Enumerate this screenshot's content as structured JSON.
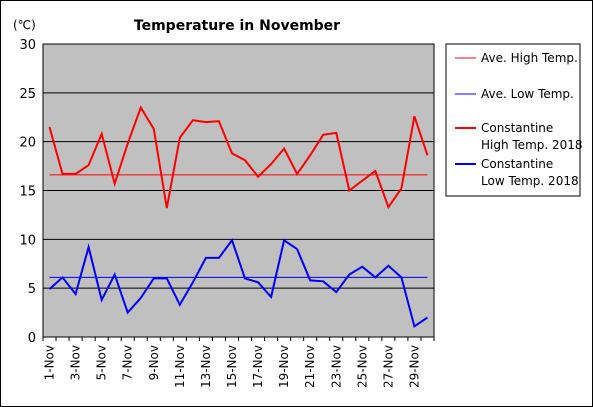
{
  "chart_data": {
    "type": "line",
    "title": "Temperature in November",
    "unit_label": "(℃)",
    "ylim": [
      0,
      30
    ],
    "yticks": [
      0,
      5,
      10,
      15,
      20,
      25,
      30
    ],
    "grid": "horizontal",
    "legend_position": "right",
    "plot_background": "#c0c0c0",
    "x": [
      "1-Nov",
      "2-Nov",
      "3-Nov",
      "4-Nov",
      "5-Nov",
      "6-Nov",
      "7-Nov",
      "8-Nov",
      "9-Nov",
      "10-Nov",
      "11-Nov",
      "12-Nov",
      "13-Nov",
      "14-Nov",
      "15-Nov",
      "16-Nov",
      "17-Nov",
      "18-Nov",
      "19-Nov",
      "20-Nov",
      "21-Nov",
      "22-Nov",
      "23-Nov",
      "24-Nov",
      "25-Nov",
      "26-Nov",
      "27-Nov",
      "28-Nov",
      "29-Nov",
      "30-Nov"
    ],
    "xtick_labels": [
      "1-Nov",
      "3-Nov",
      "5-Nov",
      "7-Nov",
      "9-Nov",
      "11-Nov",
      "13-Nov",
      "15-Nov",
      "17-Nov",
      "19-Nov",
      "21-Nov",
      "23-Nov",
      "25-Nov",
      "27-Nov",
      "29-Nov"
    ],
    "series": [
      {
        "name": "Ave. High Temp.",
        "color": "#ff0000",
        "width": 1,
        "constant": 16.6
      },
      {
        "name": "Ave. Low Temp.",
        "color": "#0000ff",
        "width": 1,
        "constant": 6.1
      },
      {
        "name_lines": [
          "Constantine",
          "High Temp. 2018"
        ],
        "color": "#ff0000",
        "width": 2,
        "values": [
          21.5,
          16.7,
          16.7,
          17.6,
          20.8,
          15.7,
          19.8,
          23.5,
          21.3,
          13.2,
          20.4,
          22.2,
          22.0,
          22.1,
          18.8,
          18.1,
          16.4,
          17.7,
          19.3,
          16.7,
          18.6,
          20.7,
          20.9,
          15.0,
          16.0,
          17.0,
          13.3,
          15.2,
          22.6,
          18.6
        ]
      },
      {
        "name_lines": [
          "Constantine",
          "Low Temp. 2018"
        ],
        "color": "#0000ff",
        "width": 2,
        "values": [
          4.9,
          6.1,
          4.4,
          9.2,
          3.8,
          6.4,
          2.5,
          4.0,
          6.0,
          6.0,
          3.3,
          5.6,
          8.1,
          8.1,
          9.9,
          6.0,
          5.6,
          4.1,
          9.9,
          9.0,
          5.8,
          5.7,
          4.6,
          6.4,
          7.2,
          6.1,
          7.3,
          6.1,
          1.1,
          2.0
        ]
      }
    ]
  }
}
